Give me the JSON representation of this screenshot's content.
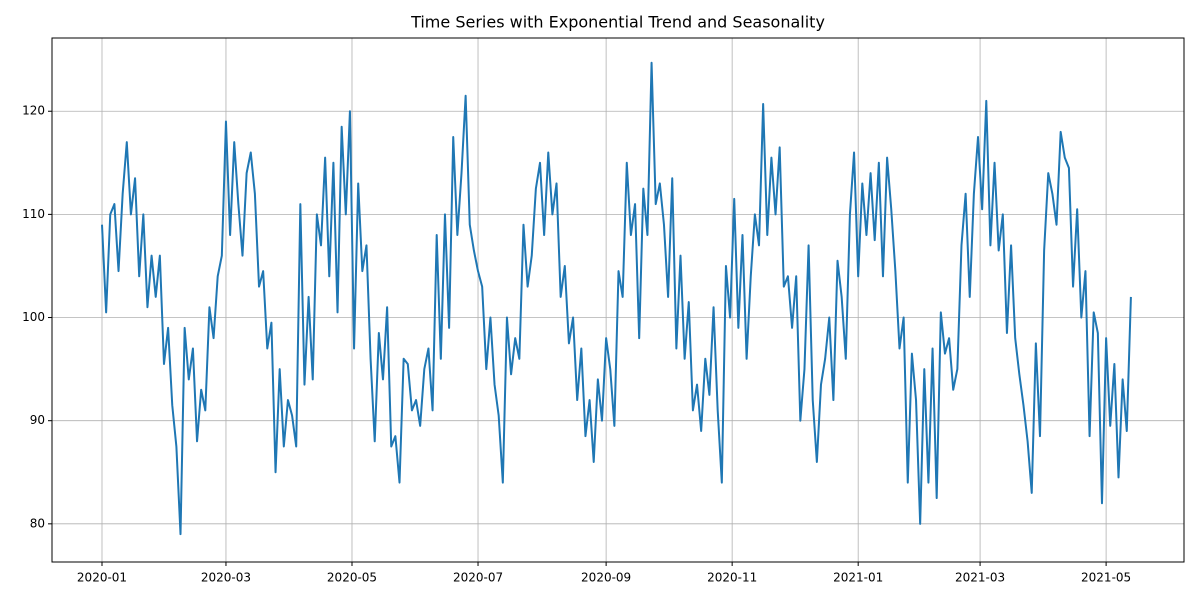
{
  "chart_data": {
    "type": "line",
    "title": "Time Series with Exponential Trend and Seasonality",
    "x": [
      0,
      2,
      4,
      6,
      8,
      10,
      12,
      14,
      16,
      18,
      20,
      22,
      24,
      26,
      28,
      30,
      32,
      34,
      36,
      38,
      40,
      42,
      44,
      46,
      48,
      50,
      52,
      54,
      56,
      58,
      60,
      62,
      64,
      66,
      68,
      70,
      72,
      74,
      76,
      78,
      80,
      82,
      84,
      86,
      88,
      90,
      92,
      94,
      96,
      98,
      100,
      102,
      104,
      106,
      108,
      110,
      112,
      114,
      116,
      118,
      120,
      122,
      124,
      126,
      128,
      130,
      132,
      134,
      136,
      138,
      140,
      142,
      144,
      146,
      148,
      150,
      152,
      154,
      156,
      158,
      160,
      162,
      164,
      166,
      168,
      170,
      172,
      174,
      176,
      178,
      180,
      182,
      184,
      186,
      188,
      190,
      192,
      194,
      196,
      198,
      200,
      202,
      204,
      206,
      208,
      210,
      212,
      214,
      216,
      218,
      220,
      222,
      224,
      226,
      228,
      230,
      232,
      234,
      236,
      238,
      240,
      242,
      244,
      246,
      248,
      250,
      252,
      254,
      256,
      258,
      260,
      262,
      264,
      266,
      268,
      270,
      272,
      274,
      276,
      278,
      280,
      282,
      284,
      286,
      288,
      290,
      292,
      294,
      296,
      298,
      300,
      302,
      304,
      306,
      308,
      310,
      312,
      314,
      316,
      318,
      320,
      322,
      324,
      326,
      328,
      330,
      332,
      334,
      336,
      338,
      340,
      342,
      344,
      346,
      348,
      350,
      352,
      354,
      356,
      358,
      360,
      362,
      364,
      366,
      368,
      370,
      372,
      374,
      376,
      378,
      380,
      382,
      384,
      386,
      388,
      390,
      392,
      394,
      396,
      398,
      400,
      402,
      404,
      406,
      408,
      410,
      412,
      414,
      416,
      418,
      420,
      422,
      424,
      426,
      428,
      430,
      432,
      434,
      436,
      438,
      440,
      442,
      444,
      446,
      448,
      450,
      452,
      454,
      456,
      458,
      460,
      462,
      464,
      466,
      468,
      470,
      472,
      474,
      476,
      478,
      480,
      482,
      484,
      486,
      488,
      490,
      492,
      494,
      496,
      498
    ],
    "series": [
      {
        "color": "#1f77b4",
        "values": [
          109,
          100.5,
          110,
          111,
          104.5,
          112,
          117,
          110,
          113.5,
          104,
          110,
          101,
          106,
          102,
          106,
          95.5,
          99,
          91.5,
          87.5,
          79,
          99,
          94,
          97,
          88,
          93,
          91,
          101,
          98,
          104,
          106,
          119,
          108,
          117,
          111,
          106,
          114,
          116,
          112,
          103,
          104.5,
          97,
          99.5,
          85,
          95,
          87.5,
          92,
          90.5,
          87.5,
          111,
          93.5,
          102,
          94,
          110,
          107,
          115.5,
          104,
          115,
          100.5,
          118.5,
          110,
          120,
          97,
          113,
          104.5,
          107,
          96,
          88,
          98.5,
          94,
          101,
          87.5,
          88.5,
          84,
          96,
          95.5,
          91,
          92,
          89.5,
          95,
          97,
          91,
          108,
          96,
          110,
          99,
          117.5,
          108,
          114,
          121.5,
          109,
          106.5,
          104.5,
          103,
          95,
          100,
          93.5,
          90.5,
          84,
          100,
          94.5,
          98,
          96,
          109,
          103,
          106,
          112.5,
          115,
          108,
          116,
          110,
          113,
          102,
          105,
          97.5,
          100,
          92,
          97,
          88.5,
          92,
          86,
          94,
          90,
          98,
          95,
          89.5,
          104.5,
          102,
          115,
          108,
          111,
          98,
          112.5,
          108,
          124.7,
          111,
          113,
          109,
          102,
          113.5,
          97,
          106,
          96,
          101.5,
          91,
          93.5,
          89,
          96,
          92.5,
          101,
          91,
          84,
          105,
          100,
          111.5,
          99,
          108,
          96,
          104,
          110,
          107,
          120.7,
          108,
          115.5,
          110,
          116.5,
          103,
          104,
          99,
          104,
          90,
          95,
          107,
          92,
          86,
          93.5,
          96,
          100,
          92,
          105.5,
          102,
          96,
          110,
          116,
          104,
          113,
          108,
          114,
          107.5,
          115,
          104,
          115.5,
          110.5,
          104.5,
          97,
          100,
          84,
          96.5,
          92,
          80,
          95,
          84,
          97,
          82.5,
          100.5,
          96.5,
          98,
          93,
          95,
          107,
          112,
          102,
          112,
          117.5,
          110.5,
          121,
          107,
          115,
          106.5,
          110,
          98.5,
          107,
          98,
          94.5,
          91.5,
          88,
          83,
          97.5,
          88.5,
          106.5,
          114,
          112,
          109,
          118,
          115.5,
          114.5,
          103,
          110.5,
          100,
          104.5,
          88.5,
          100.5,
          98.5,
          82,
          98,
          89.5,
          95.5,
          84.5,
          94,
          89,
          102
        ]
      }
    ],
    "xlim": [
      -24.2,
      523.7
    ],
    "xticks": [
      {
        "value": 0,
        "label": "2020-01"
      },
      {
        "value": 60,
        "label": "2020-03"
      },
      {
        "value": 121,
        "label": "2020-05"
      },
      {
        "value": 182,
        "label": "2020-07"
      },
      {
        "value": 244,
        "label": "2020-09"
      },
      {
        "value": 305,
        "label": "2020-11"
      },
      {
        "value": 366,
        "label": "2021-01"
      },
      {
        "value": 425,
        "label": "2021-03"
      },
      {
        "value": 486,
        "label": "2021-05"
      }
    ],
    "ylim": [
      76.3,
      127.1
    ],
    "yticks": [
      80,
      90,
      100,
      110,
      120
    ],
    "grid": true
  }
}
